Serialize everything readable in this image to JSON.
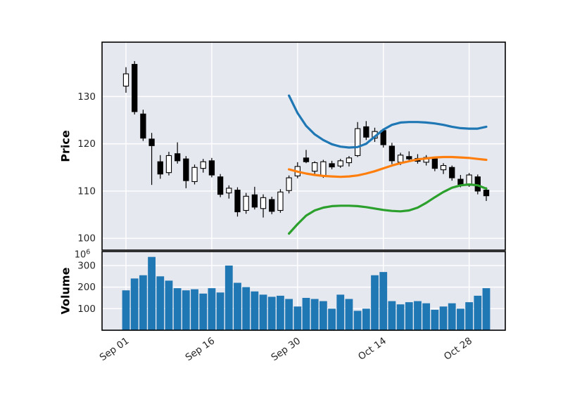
{
  "chart_data": {
    "type": "candlestick",
    "title": "",
    "price_ylabel": "Price",
    "volume_ylabel": "Volume",
    "volume_offset_base": "10",
    "volume_offset_exp": "6",
    "price_yticks": [
      100,
      110,
      120,
      130
    ],
    "volume_yticks": [
      100,
      200,
      300
    ],
    "price_ylim": [
      97.5,
      141.5
    ],
    "volume_ylim": [
      0,
      365
    ],
    "x_tick_labels": [
      "Sep 01",
      "Sep 16",
      "Sep 30",
      "Oct 14",
      "Oct 28"
    ],
    "x_tick_indices": [
      0,
      10,
      20,
      30,
      40
    ],
    "x_tick_rotation": -35,
    "grid": true,
    "legend": null,
    "candles": {
      "open": [
        132.2,
        136.8,
        126.3,
        121.0,
        116.2,
        113.9,
        117.9,
        116.8,
        112.0,
        114.8,
        116.4,
        113.0,
        109.6,
        110.2,
        105.9,
        109.2,
        106.3,
        108.2,
        105.9,
        110.1,
        113.2,
        117.0,
        114.2,
        113.2,
        115.8,
        115.3,
        116.0,
        117.5,
        123.6,
        121.2,
        122.8,
        119.5,
        116.1,
        117.3,
        116.9,
        116.1,
        116.8,
        114.5,
        115.0,
        112.5,
        111.2,
        113.0,
        110.2
      ],
      "high": [
        136.2,
        137.5,
        127.2,
        122.3,
        117.6,
        118.3,
        120.3,
        117.4,
        115.6,
        116.8,
        117.0,
        113.6,
        111.2,
        110.8,
        109.6,
        110.9,
        109.3,
        108.8,
        110.4,
        113.3,
        116.1,
        118.7,
        116.3,
        116.6,
        116.4,
        116.8,
        117.4,
        124.6,
        124.8,
        123.4,
        123.2,
        120.2,
        118.1,
        118.4,
        117.8,
        117.6,
        117.2,
        115.9,
        115.4,
        113.4,
        113.8,
        113.5,
        110.8
      ],
      "low": [
        130.8,
        126.2,
        120.6,
        111.3,
        112.6,
        113.3,
        115.8,
        110.6,
        111.4,
        113.9,
        112.9,
        108.7,
        108.4,
        104.6,
        105.2,
        106.1,
        104.4,
        105.1,
        105.4,
        109.5,
        112.7,
        115.9,
        113.4,
        112.8,
        114.6,
        114.9,
        115.2,
        117.2,
        120.8,
        120.4,
        119.2,
        115.7,
        115.5,
        116.2,
        115.8,
        115.4,
        114.2,
        113.6,
        112.2,
        110.8,
        110.9,
        109.3,
        107.9
      ],
      "close": [
        134.8,
        126.8,
        121.2,
        119.6,
        113.6,
        117.5,
        116.4,
        112.2,
        115.0,
        116.2,
        113.4,
        109.3,
        110.6,
        105.6,
        108.9,
        106.6,
        108.6,
        105.7,
        109.8,
        112.8,
        115.2,
        116.2,
        116.0,
        116.2,
        115.1,
        116.4,
        117.0,
        123.2,
        121.4,
        122.6,
        119.8,
        116.4,
        117.6,
        116.8,
        116.3,
        117.1,
        114.8,
        115.4,
        112.8,
        111.4,
        113.4,
        110.0,
        109.0
      ]
    },
    "volume_millions": [
      185,
      240,
      255,
      340,
      250,
      230,
      195,
      185,
      190,
      170,
      195,
      175,
      300,
      220,
      200,
      180,
      165,
      155,
      160,
      145,
      110,
      150,
      145,
      135,
      100,
      165,
      145,
      90,
      100,
      255,
      270,
      135,
      120,
      130,
      135,
      125,
      95,
      110,
      125,
      100,
      130,
      160,
      195
    ],
    "bands": {
      "start_index": 19,
      "upper": [
        130.2,
        126.5,
        123.8,
        122.0,
        120.8,
        119.9,
        119.4,
        119.2,
        119.3,
        120.0,
        121.5,
        123.0,
        124.0,
        124.5,
        124.6,
        124.6,
        124.5,
        124.3,
        124.0,
        123.6,
        123.3,
        123.2,
        123.2,
        123.6
      ],
      "middle": [
        114.6,
        114.1,
        113.7,
        113.4,
        113.2,
        113.1,
        113.0,
        113.1,
        113.3,
        113.7,
        114.2,
        114.8,
        115.4,
        115.9,
        116.3,
        116.7,
        116.9,
        117.1,
        117.2,
        117.2,
        117.1,
        117.0,
        116.8,
        116.6
      ],
      "lower": [
        101.0,
        103.0,
        104.8,
        105.9,
        106.5,
        106.8,
        106.9,
        106.9,
        106.8,
        106.6,
        106.3,
        106.0,
        105.8,
        105.7,
        105.9,
        106.5,
        107.5,
        108.7,
        109.8,
        110.7,
        111.2,
        111.4,
        111.2,
        110.5
      ]
    },
    "colors": {
      "candle_up_fill": "#ffffff",
      "candle_down_fill": "#000000",
      "candle_edge": "#000000",
      "band_upper": "#1f77b4",
      "band_middle": "#ff7f0e",
      "band_lower": "#2ca02c",
      "volume_bar": "#1f77b4",
      "panel_bg": "#e6e8f0",
      "grid": "#ffffff",
      "spine": "#000000",
      "tick_text": "#262626",
      "label_text": "#000000",
      "figure_bg": "#ffffff"
    }
  }
}
